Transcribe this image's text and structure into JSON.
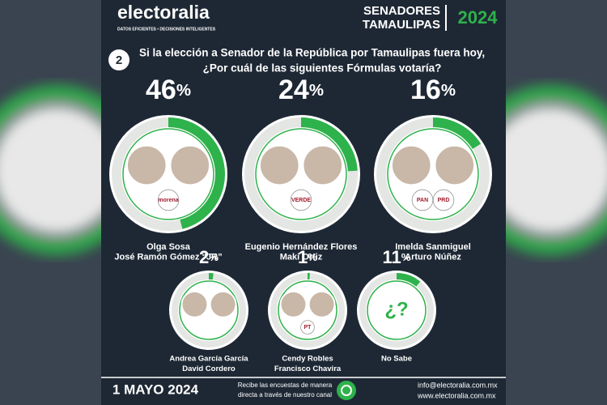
{
  "header": {
    "brand": "electoralia",
    "tagline": "DATOS EFICIENTES • DECISIONES INTELIGENTES",
    "title_lines": [
      "SENADORES",
      "TAMAULIPAS"
    ],
    "year": "2024"
  },
  "question": {
    "number": "2",
    "lines": [
      "Si la elección a Senador de la República por Tamaulipas fuera hoy,",
      "¿Por cuál de las siguientes Fórmulas votaría?"
    ]
  },
  "chart_data": {
    "type": "ring",
    "unit": "%",
    "color": "#2eb24b",
    "track_color": "#e4e6e4",
    "values": [
      46,
      24,
      16,
      2,
      1,
      11
    ],
    "labels": [
      [
        "Olga Sosa",
        "José Ramón Gómez “JR”"
      ],
      [
        "Eugenio Hernández Flores",
        "Maki Ortiz"
      ],
      [
        "Imelda Sanmiguel",
        "Arturo Núñez"
      ],
      [
        "Andrea García García",
        "David Cordero"
      ],
      [
        "Cendy Robles",
        "Francisco Chavira"
      ],
      [
        "No Sabe"
      ]
    ],
    "parties": [
      [
        "morena"
      ],
      [
        "VERDE"
      ],
      [
        "PAN",
        "PRD"
      ],
      [],
      [
        "PT"
      ],
      []
    ],
    "unknown_icon": "¿?"
  },
  "footer": {
    "date": "1 MAYO 2024",
    "channel_lines": [
      "Recibe las encuestas de manera",
      "directa a través de nuestro canal"
    ],
    "email": "info@electoralia.com.mx",
    "website": "www.electoralia.com.mx"
  }
}
